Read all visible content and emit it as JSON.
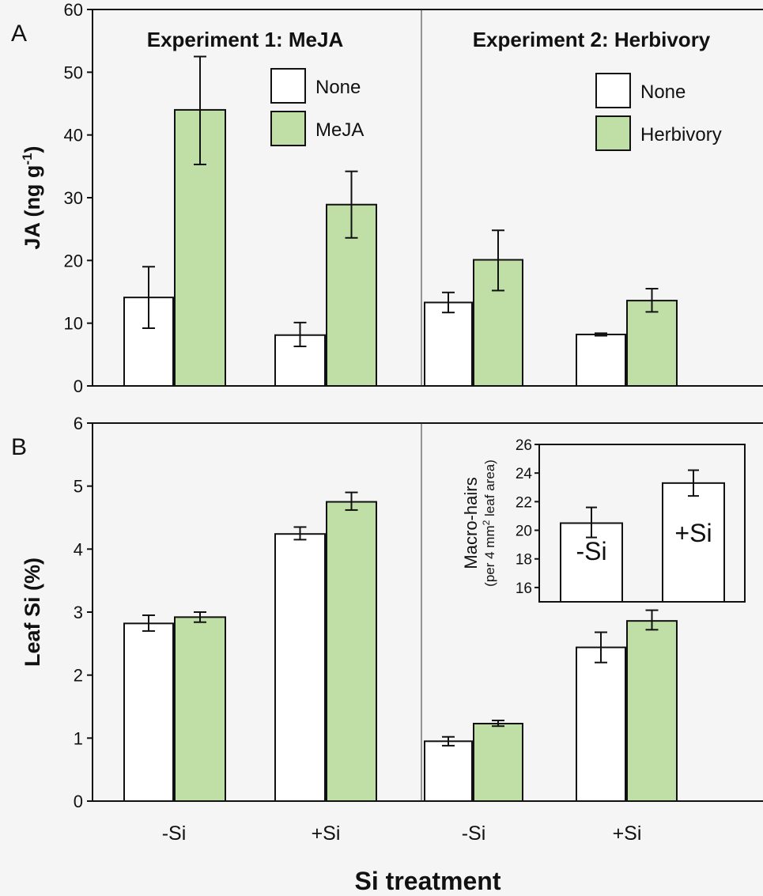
{
  "chart_data": [
    {
      "type": "bar",
      "panel_label": "A",
      "ylabel": "JA (ng g",
      "ylabel_sup": "-1",
      "ylabel_close": ")",
      "ylim": [
        0,
        60
      ],
      "yticks": [
        "0",
        "10",
        "20",
        "30",
        "40",
        "50",
        "60"
      ],
      "experiments": [
        {
          "title": "Experiment 1: MeJA",
          "legend": [
            "None",
            "MeJA"
          ],
          "categories": [
            "-Si",
            "+Si"
          ],
          "series": [
            {
              "name": "None",
              "values": [
                14.1,
                8.1
              ],
              "err_low": [
                9.2,
                6.3
              ],
              "err_high": [
                19.0,
                10.1
              ]
            },
            {
              "name": "MeJA",
              "values": [
                44.0,
                28.9
              ],
              "err_low": [
                35.3,
                23.6
              ],
              "err_high": [
                52.5,
                34.2
              ]
            }
          ]
        },
        {
          "title": "Experiment 2: Herbivory",
          "legend": [
            "None",
            "Herbivory"
          ],
          "categories": [
            "-Si",
            "+Si"
          ],
          "series": [
            {
              "name": "None",
              "values": [
                13.3,
                8.2
              ],
              "err_low": [
                11.7,
                8.0
              ],
              "err_high": [
                14.9,
                8.4
              ]
            },
            {
              "name": "Herbivory",
              "values": [
                20.1,
                13.6
              ],
              "err_low": [
                15.2,
                11.8
              ],
              "err_high": [
                24.8,
                15.5
              ]
            }
          ]
        }
      ]
    },
    {
      "type": "bar",
      "panel_label": "B",
      "ylabel": "Leaf Si (%)",
      "ylim": [
        0,
        6
      ],
      "yticks": [
        "0",
        "1",
        "2",
        "3",
        "4",
        "5",
        "6"
      ],
      "xlabel": "Si treatment",
      "xticks": [
        "-Si",
        "+Si",
        "-Si",
        "+Si"
      ],
      "experiments": [
        {
          "series": [
            {
              "name": "None",
              "values": [
                2.82,
                4.24
              ],
              "err_low": [
                2.7,
                4.15
              ],
              "err_high": [
                2.95,
                4.35
              ]
            },
            {
              "name": "MeJA",
              "values": [
                2.92,
                4.75
              ],
              "err_low": [
                2.84,
                4.62
              ],
              "err_high": [
                3.0,
                4.9
              ]
            }
          ]
        },
        {
          "series": [
            {
              "name": "None",
              "values": [
                0.95,
                2.44
              ],
              "err_low": [
                0.88,
                2.2
              ],
              "err_high": [
                1.02,
                2.68
              ]
            },
            {
              "name": "Herbivory",
              "values": [
                1.23,
                2.86
              ],
              "err_low": [
                1.19,
                2.72
              ],
              "err_high": [
                1.28,
                3.03
              ]
            }
          ]
        }
      ],
      "inset": {
        "ylabel": "Macro-hairs",
        "ylabel2_pre": "(per 4 mm",
        "ylabel2_sup": "2",
        "ylabel2_post": " leaf area)",
        "ylim": [
          15,
          26
        ],
        "yticks": [
          "16",
          "18",
          "20",
          "22",
          "24",
          "26"
        ],
        "categories": [
          "-Si",
          "+Si"
        ],
        "values": [
          20.5,
          23.3
        ],
        "err_low": [
          19.5,
          22.4
        ],
        "err_high": [
          21.6,
          24.2
        ]
      }
    }
  ],
  "colors": {
    "none": "#ffffff",
    "treated": "#c0dfa6",
    "stroke": "#111111"
  }
}
